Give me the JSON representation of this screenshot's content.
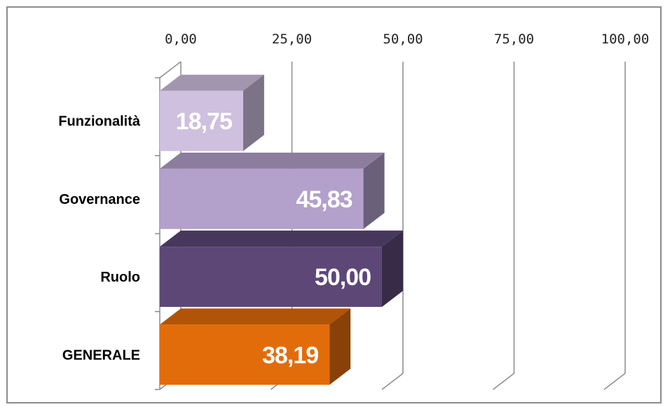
{
  "chart_data": {
    "type": "bar",
    "orientation": "horizontal",
    "style": "3d",
    "categories": [
      "Funzionalità",
      "Governance",
      "Ruolo",
      "GENERALE"
    ],
    "values": [
      18.75,
      45.83,
      50.0,
      38.19
    ],
    "value_labels": [
      "18,75",
      "45,83",
      "50,00",
      "38,19"
    ],
    "colors": [
      "#cfc0df",
      "#b3a0cb",
      "#5c4777",
      "#e36c0a"
    ],
    "xlim": [
      0,
      100
    ],
    "x_ticks": [
      0,
      25,
      50,
      75,
      100
    ],
    "x_tick_labels": [
      "0,00",
      "25,00",
      "50,00",
      "75,00",
      "100,00"
    ],
    "x_axis_position": "top",
    "grid": true,
    "legend": "none",
    "title": "",
    "xlabel": "",
    "ylabel": ""
  }
}
